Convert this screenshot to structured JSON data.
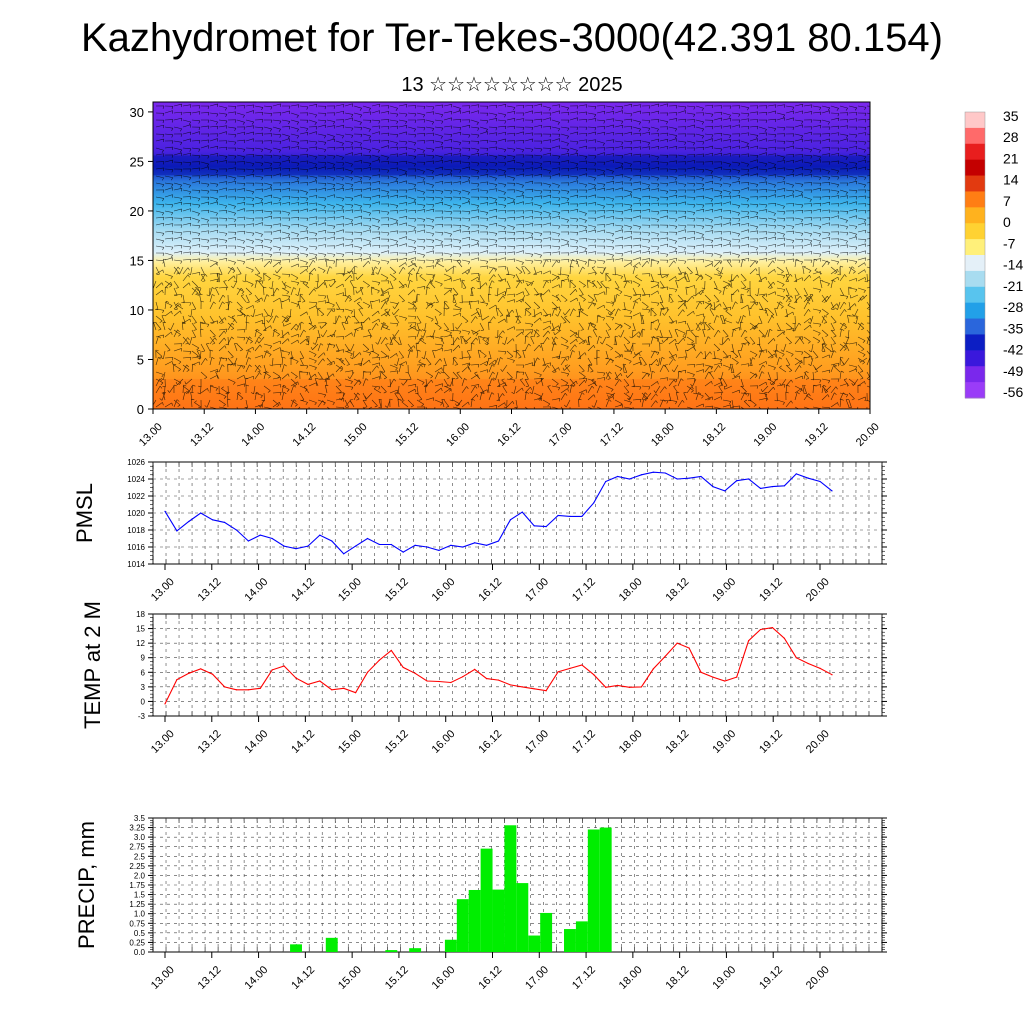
{
  "header": {
    "title": "Kazhydromet for Ter-Tekes-3000(42.391 80.154)",
    "subtitle": "13 ☆☆☆☆☆☆☆☆ 2025"
  },
  "colors": {
    "pmsl_line": "#0000ff",
    "temp_line": "#ff0000",
    "precip_bar": "#00ee00"
  },
  "chart_data": [
    {
      "type": "heatmap",
      "title": "",
      "xlabel": "",
      "ylabel": "",
      "x_tick_labels": [
        "13.00",
        "13.12",
        "14.00",
        "14.12",
        "15.00",
        "15.12",
        "16.00",
        "16.12",
        "17.00",
        "17.12",
        "18.00",
        "18.12",
        "19.00",
        "19.12",
        "20.00"
      ],
      "y_ticks": [
        0,
        5,
        10,
        15,
        20,
        25,
        30
      ],
      "ylim": [
        0,
        31
      ],
      "colorbar": {
        "labels": [
          "35",
          "28",
          "21",
          "14",
          "7",
          "0",
          "-7",
          "-14",
          "-21",
          "-28",
          "-35",
          "-42",
          "-49",
          "-56"
        ],
        "colors": [
          "#ffc8c8",
          "#ff6a6a",
          "#e81e1e",
          "#c40000",
          "#e23a10",
          "#ff7e14",
          "#ffb21e",
          "#ffd232",
          "#fff07a",
          "#e4f0f8",
          "#a8dcf0",
          "#58c4ee",
          "#22a0e8",
          "#2a66dc",
          "#0c1ec4",
          "#3a18dc",
          "#7a28ec",
          "#9a3cf8"
        ]
      },
      "overlay": "wind barbs"
    },
    {
      "type": "line",
      "ylabel": "PMSL",
      "x_tick_labels": [
        "13.00",
        "13.12",
        "14.00",
        "14.12",
        "15.00",
        "15.12",
        "16.00",
        "16.12",
        "17.00",
        "17.12",
        "18.00",
        "18.12",
        "19.00",
        "19.12",
        "20.00"
      ],
      "x_range": [
        0,
        168
      ],
      "ylim": [
        1014,
        1026
      ],
      "y_ticks": [
        1014,
        1016,
        1018,
        1020,
        1022,
        1024,
        1026
      ],
      "grid": true,
      "series": [
        {
          "x": [
            0,
            3,
            6,
            9,
            12,
            15,
            18,
            21,
            24,
            27,
            30,
            33,
            36,
            39,
            42,
            45,
            48,
            51,
            54,
            57,
            60,
            63,
            66,
            69,
            72,
            75,
            78,
            81,
            84,
            87,
            90,
            93,
            96,
            99,
            102,
            105,
            108,
            111,
            114,
            117,
            120,
            123,
            126,
            129,
            132,
            135,
            138,
            141,
            144,
            147,
            150,
            153,
            156,
            159,
            162,
            165,
            168
          ],
          "values": [
            1020.2,
            1017.9,
            1019.0,
            1020.0,
            1019.2,
            1018.9,
            1018.0,
            1016.7,
            1017.4,
            1017.0,
            1016.1,
            1015.8,
            1016.1,
            1017.4,
            1016.7,
            1015.2,
            1016.1,
            1017.0,
            1016.3,
            1016.3,
            1015.4,
            1016.2,
            1016.0,
            1015.6,
            1016.2,
            1016.0,
            1016.5,
            1016.2,
            1016.7,
            1019.2,
            1020.1,
            1018.5,
            1018.4,
            1019.7,
            1019.6,
            1019.6,
            1021.2,
            1023.7,
            1024.3,
            1024.0,
            1024.5,
            1024.8,
            1024.7,
            1024.0,
            1024.1,
            1024.3,
            1023.1,
            1022.6,
            1023.8,
            1024.0,
            1022.9,
            1023.1,
            1023.2,
            1024.6,
            1024.1,
            1023.7,
            1022.6
          ]
        }
      ]
    },
    {
      "type": "line",
      "ylabel": "TEMP at 2 M",
      "x_tick_labels": [
        "13.00",
        "13.12",
        "14.00",
        "14.12",
        "15.00",
        "15.12",
        "16.00",
        "16.12",
        "17.00",
        "17.12",
        "18.00",
        "18.12",
        "19.00",
        "19.12",
        "20.00"
      ],
      "x_range": [
        0,
        168
      ],
      "ylim": [
        -3,
        18
      ],
      "y_ticks": [
        -3,
        0,
        3,
        6,
        9,
        12,
        15,
        18
      ],
      "grid": true,
      "series": [
        {
          "x": [
            0,
            3,
            6,
            9,
            12,
            15,
            18,
            21,
            24,
            27,
            30,
            33,
            36,
            39,
            42,
            45,
            48,
            51,
            54,
            57,
            60,
            63,
            66,
            69,
            72,
            75,
            78,
            81,
            84,
            87,
            90,
            93,
            96,
            99,
            102,
            105,
            108,
            111,
            114,
            117,
            120,
            123,
            126,
            129,
            132,
            135,
            138,
            141,
            144,
            147,
            150,
            153,
            156,
            159,
            162,
            165,
            168
          ],
          "values": [
            -0.5,
            4.5,
            5.8,
            6.7,
            5.6,
            3.0,
            2.4,
            2.4,
            2.7,
            6.5,
            7.3,
            4.8,
            3.5,
            4.2,
            2.4,
            2.7,
            1.8,
            6.0,
            8.5,
            10.5,
            7.0,
            5.8,
            4.2,
            4.1,
            3.9,
            5.1,
            6.6,
            4.7,
            4.4,
            3.4,
            3.0,
            2.6,
            2.2,
            6.1,
            6.8,
            7.5,
            5.5,
            2.9,
            3.3,
            2.9,
            3.0,
            6.7,
            9.3,
            12.0,
            11.0,
            6.0,
            5.0,
            4.2,
            5.0,
            12.5,
            14.8,
            15.2,
            13.0,
            9.0,
            7.8,
            6.8,
            5.5
          ]
        }
      ]
    },
    {
      "type": "bar",
      "ylabel": "PRECIP, mm",
      "x_tick_labels": [
        "13.00",
        "13.12",
        "14.00",
        "14.12",
        "15.00",
        "15.12",
        "16.00",
        "16.12",
        "17.00",
        "17.12",
        "18.00",
        "18.12",
        "19.00",
        "19.12",
        "20.00"
      ],
      "x_range": [
        0,
        168
      ],
      "ylim": [
        0,
        3.5
      ],
      "y_ticks": [
        0.0,
        0.25,
        0.5,
        0.75,
        1.0,
        1.25,
        1.5,
        1.75,
        2.0,
        2.25,
        2.5,
        2.75,
        3.0,
        3.25,
        3.5
      ],
      "y_tick_labels": [
        "0.0",
        "0.25",
        "0.5",
        "0.75",
        "1.0",
        "1.25",
        "1.5",
        "1.75",
        "2.0",
        "2.25",
        "2.5",
        "2.75",
        "3.0",
        "3.25",
        "3.5"
      ],
      "bar_width_hours": 3,
      "grid": true,
      "x": [
        33,
        42,
        57,
        63,
        72,
        75,
        78,
        81,
        84,
        87,
        90,
        93,
        96,
        99,
        102,
        105,
        108,
        111
      ],
      "values": [
        0.2,
        0.37,
        0.05,
        0.1,
        0.32,
        1.38,
        1.62,
        2.7,
        1.63,
        3.31,
        1.8,
        0.43,
        1.02,
        0.0,
        0.6,
        0.8,
        3.2,
        3.25
      ]
    }
  ]
}
